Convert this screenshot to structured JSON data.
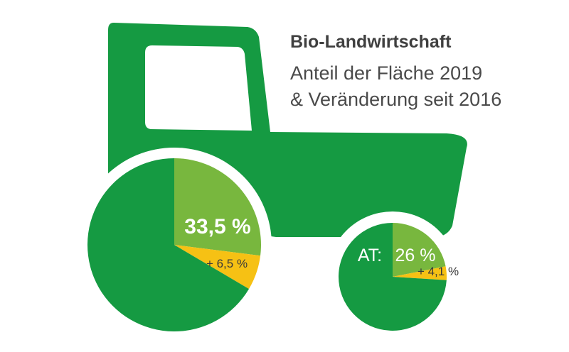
{
  "title": "Bio-Landwirtschaft",
  "subtitle_line1": "Anteil der Fläche 2019",
  "subtitle_line2": "& Veränderung seit 2016",
  "colors": {
    "tractor": "#159a42",
    "share": "#78b73e",
    "change": "#f6c114",
    "rest": "#159a42"
  },
  "chart_data": [
    {
      "type": "pie",
      "slices": [
        {
          "label": "33,5 %",
          "value": 27.0,
          "color": "#78b73e"
        },
        {
          "label": "+ 6,5 %",
          "value": 6.5,
          "color": "#f6c114"
        },
        {
          "label": "",
          "value": 66.5,
          "color": "#159a42"
        }
      ]
    },
    {
      "type": "pie",
      "prefix": "AT:",
      "slices": [
        {
          "label": "26 %",
          "value": 21.9,
          "color": "#78b73e"
        },
        {
          "label": "+ 4,1 %",
          "value": 4.1,
          "color": "#f6c114"
        },
        {
          "label": "",
          "value": 74.0,
          "color": "#159a42"
        }
      ]
    }
  ]
}
